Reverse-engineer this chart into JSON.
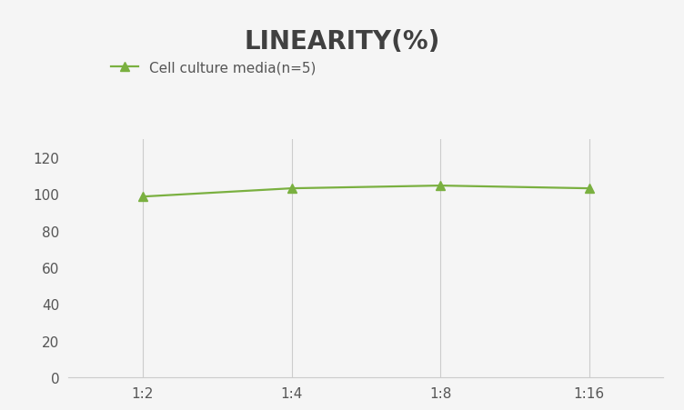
{
  "title": "LINEARITY(%)",
  "title_fontsize": 20,
  "title_fontweight": "bold",
  "title_color": "#404040",
  "x_labels": [
    "1:2",
    "1:4",
    "1:8",
    "1:16"
  ],
  "x_values": [
    1,
    2,
    3,
    4
  ],
  "series": [
    {
      "label": "Cell culture media(n=5)",
      "values": [
        98.5,
        103.0,
        104.5,
        103.0
      ],
      "color": "#7ab040",
      "marker": "^",
      "markersize": 7,
      "linewidth": 1.6
    }
  ],
  "ylim": [
    0,
    130
  ],
  "yticks": [
    0,
    20,
    40,
    60,
    80,
    100,
    120
  ],
  "legend_fontsize": 11,
  "grid_color": "#cccccc",
  "grid_linewidth": 0.8,
  "background_color": "#f5f5f5",
  "tick_fontsize": 11,
  "spine_color": "#cccccc"
}
